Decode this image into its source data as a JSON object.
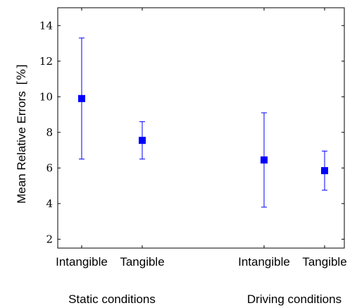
{
  "chart_data": {
    "type": "scatter",
    "ylabel": "Mean Relative Errors",
    "ylabel_unit": "[%]",
    "ylim": [
      1.5,
      15
    ],
    "yticks": [
      2,
      4,
      6,
      8,
      10,
      12,
      14
    ],
    "ytick_labels": [
      "2",
      "4",
      "6",
      "8",
      "10",
      "12",
      "14"
    ],
    "categories": [
      "Intangible",
      "Tangible",
      "Intangible",
      "Tangible"
    ],
    "groups": [
      {
        "label": "Static conditions",
        "categories": [
          0,
          1
        ]
      },
      {
        "label": "Driving conditions",
        "categories": [
          2,
          3
        ]
      }
    ],
    "series": [
      {
        "marker": "square",
        "color": "#0000ff",
        "values": [
          9.9,
          7.55,
          6.45,
          5.85
        ],
        "err_low": [
          6.5,
          6.5,
          3.8,
          4.75
        ],
        "err_high": [
          13.3,
          8.6,
          9.1,
          6.95
        ]
      }
    ],
    "grid": false,
    "legend": "none"
  }
}
